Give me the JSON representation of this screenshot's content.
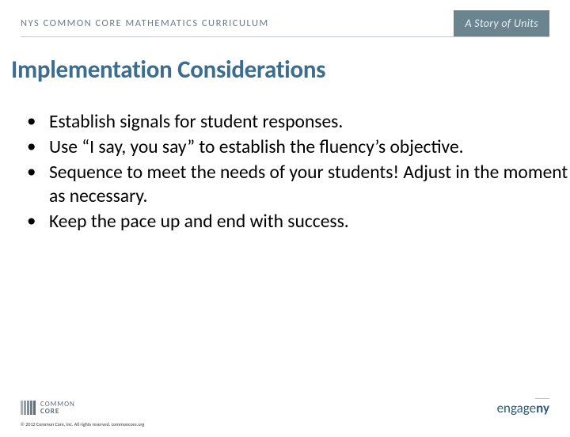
{
  "header": {
    "left": "NYS COMMON CORE MATHEMATICS CURRICULUM",
    "right": "A Story of Units"
  },
  "title": "Implementation Considerations",
  "bullets": [
    "Establish signals for student responses.",
    "Use “I say, you say” to establish the fluency’s objective.",
    "Sequence to meet the needs of your students! Adjust in the moment as necessary.",
    "Keep the pace up and end with success."
  ],
  "footer": {
    "cc_line1": "COMMON",
    "cc_line2": "CORE",
    "copyright": "© 2012 Common Core, Inc. All rights reserved. commoncore.org",
    "engage_part1": "engage",
    "engage_part2": "ny"
  },
  "colors": {
    "title_color": "#3a6d8f",
    "header_text": "#6a7a88",
    "header_bg": "#6a8590",
    "body_text": "#000000"
  }
}
